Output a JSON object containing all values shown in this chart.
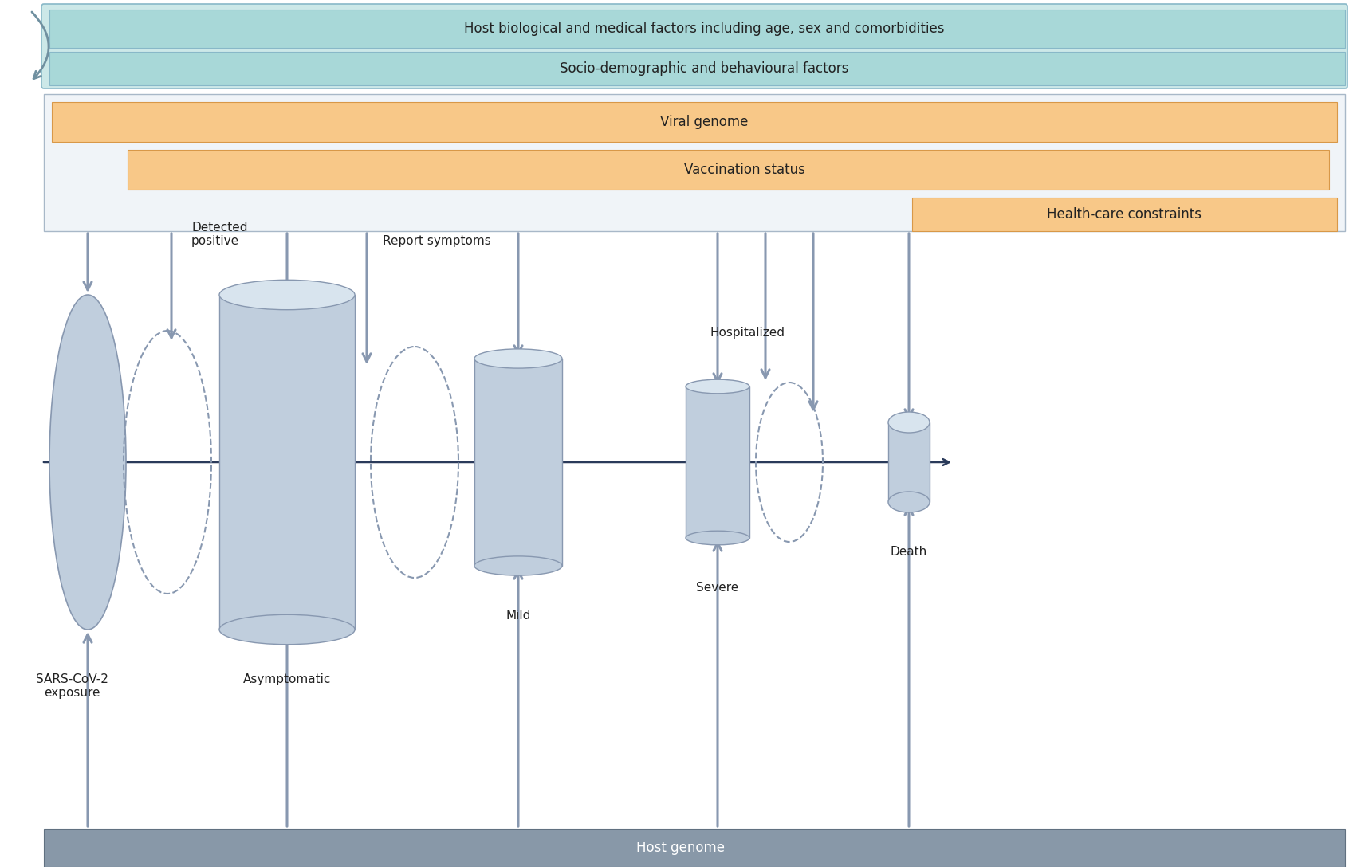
{
  "bg_color": "#ffffff",
  "cyan_outer_color": "#c8e8e8",
  "cyan_outer_border": "#88b8c8",
  "cyan_bar1_color": "#a8d8d8",
  "cyan_bar2_color": "#a8d8d8",
  "orange_color": "#f8c888",
  "orange_border": "#d89848",
  "inner_box_color": "#f0f4f8",
  "inner_box_border": "#a8b8c8",
  "host_genome_color": "#8898a8",
  "cylinder_body": "#c0cedd",
  "cylinder_edge": "#8898b0",
  "cylinder_top_color": "#d8e4ee",
  "cylinder_shadow": "#a8b8c8",
  "arrow_down_color": "#8898b0",
  "arrow_up_color": "#8898b0",
  "line_color": "#2a3a5a",
  "dashed_color": "#8898b0",
  "text_color": "#222222",
  "cyan_label1": "Host biological and medical factors including age, sex and comorbidities",
  "cyan_label2": "Socio-demographic and behavioural factors",
  "orange_label1": "Viral genome",
  "orange_label2": "Vaccination status",
  "orange_label3": "Health-care constraints",
  "host_genome_label": "Host genome"
}
